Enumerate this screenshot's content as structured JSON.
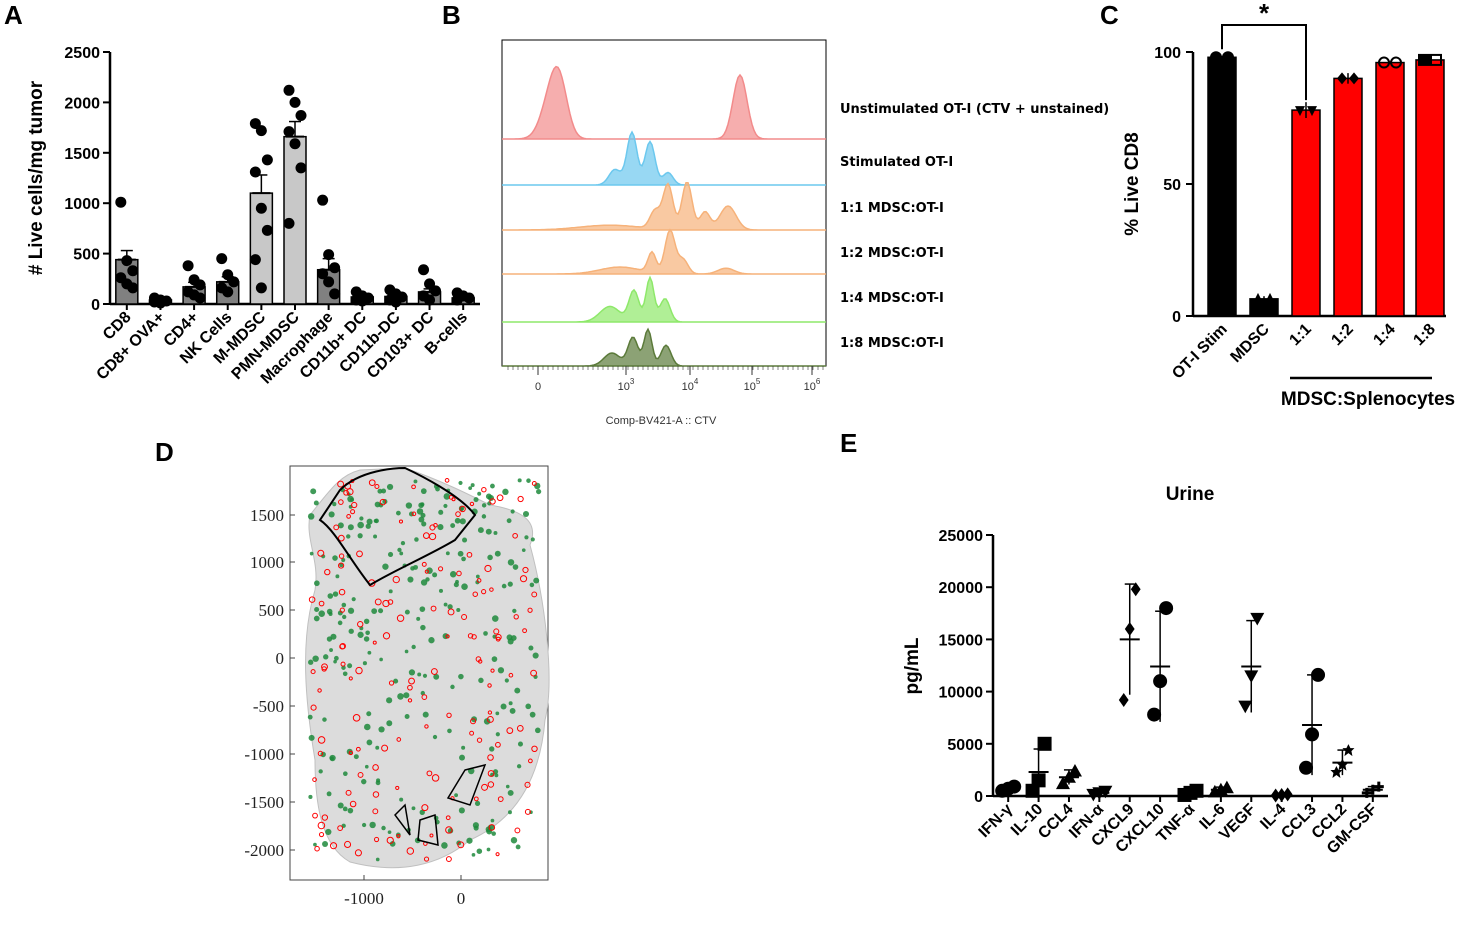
{
  "panel_labels": {
    "a": "A",
    "b": "B",
    "c": "C",
    "d": "D",
    "e": "E"
  },
  "colors": {
    "black": "#000000",
    "dark_gray": "#808080",
    "light_gray": "#c8c8c8",
    "red": "#ff0000",
    "green": "#1e8a3c",
    "hist_red": "#f28b8b",
    "hist_blue": "#6cc8ee",
    "hist_orange": "#f6b27a",
    "hist_green": "#8ee86a",
    "hist_olive": "#5b7a3a"
  },
  "chart_data": [
    {
      "id": "A",
      "type": "bar",
      "ylabel": "# Live cells/mg tumor",
      "ylim": [
        0,
        2500
      ],
      "yticks": [
        "0",
        "500",
        "1000",
        "1500",
        "2000",
        "2500"
      ],
      "categories": [
        "CD8",
        "CD8+ OVA+",
        "CD4+",
        "NK Cells",
        "M-MDSC",
        "PMN-MDSC",
        "Macrophage",
        "CD11b+ DC",
        "CD11b-DC",
        "CD103+ DC",
        "B-cells"
      ],
      "values": [
        440,
        40,
        170,
        220,
        1100,
        1660,
        340,
        70,
        75,
        120,
        60
      ],
      "sem": [
        90,
        15,
        45,
        50,
        180,
        150,
        110,
        15,
        15,
        30,
        10
      ],
      "points": [
        [
          1010,
          430,
          330,
          260,
          200,
          160
        ],
        [
          60,
          40,
          30,
          20,
          10
        ],
        [
          380,
          240,
          190,
          120,
          90,
          60
        ],
        [
          450,
          290,
          220,
          160,
          120
        ],
        [
          1790,
          1720,
          1430,
          1310,
          950,
          730,
          440,
          160
        ],
        [
          2120,
          2000,
          1870,
          1710,
          1590,
          1350,
          800
        ],
        [
          1030,
          490,
          360,
          300,
          220,
          100
        ],
        [
          120,
          80,
          60,
          40,
          30
        ],
        [
          140,
          100,
          70,
          40,
          20
        ],
        [
          340,
          200,
          130,
          80,
          40
        ],
        [
          110,
          80,
          60,
          40
        ]
      ],
      "bar_colors": [
        "dark",
        "dark",
        "dark",
        "dark",
        "light",
        "light",
        "dark",
        "dark",
        "dark",
        "dark",
        "dark"
      ]
    },
    {
      "id": "B",
      "type": "histogram",
      "xlabel": "Comp-BV421-A :: CTV",
      "xticks": [
        "0",
        "10^3",
        "10^4",
        "10^5",
        "10^6"
      ],
      "series": [
        {
          "name": "Unstimulated OT-I (CTV + unstained)",
          "color": "hist_red"
        },
        {
          "name": "Stimulated OT-I",
          "color": "hist_blue"
        },
        {
          "name": "1:1 MDSC:OT-I",
          "color": "hist_orange"
        },
        {
          "name": "1:2 MDSC:OT-I",
          "color": "hist_orange"
        },
        {
          "name": "1:4 MDSC:OT-I",
          "color": "hist_green"
        },
        {
          "name": "1:8 MDSC:OT-I",
          "color": "hist_olive"
        }
      ]
    },
    {
      "id": "C",
      "type": "bar",
      "ylabel": "% Live CD8",
      "ylim": [
        0,
        100
      ],
      "yticks": [
        "0",
        "50",
        "100"
      ],
      "categories": [
        "OT-I Stim",
        "MDSC",
        "1:1",
        "1:2",
        "1:4",
        "1:8"
      ],
      "values": [
        98,
        6.5,
        78,
        90,
        96,
        97
      ],
      "sem": [
        0.5,
        1,
        3,
        2,
        0.5,
        1
      ],
      "bar_colors": [
        "black",
        "black",
        "red",
        "red",
        "red",
        "red"
      ],
      "annotation": "*",
      "group_label": "MDSC:Splenocytes"
    },
    {
      "id": "D",
      "type": "spatial-map",
      "xticks": [
        "-1000",
        "0"
      ],
      "yticks": [
        "1500",
        "1000",
        "500",
        "0",
        "-500",
        "-1000",
        "-1500",
        "-2000"
      ]
    },
    {
      "id": "E",
      "type": "scatter",
      "title": "Urine",
      "ylabel": "pg/mL",
      "ylim": [
        0,
        25000
      ],
      "yticks": [
        "0",
        "5000",
        "10000",
        "15000",
        "20000",
        "25000"
      ],
      "categories": [
        "IFN-γ",
        "IL-10",
        "CCL4",
        "IFN-α",
        "CXCL9",
        "CXCL10",
        "TNF-α",
        "IL-6",
        "VEGF",
        "IL-4",
        "CCL3",
        "CCL2",
        "GM-CSF"
      ],
      "means": [
        700,
        2300,
        1800,
        300,
        15000,
        12400,
        300,
        600,
        12400,
        100,
        6800,
        3200,
        600
      ],
      "sd": [
        200,
        2200,
        700,
        150,
        5300,
        5300,
        200,
        250,
        4400,
        50,
        4800,
        1200,
        300
      ],
      "points": [
        [
          500,
          700,
          900
        ],
        [
          500,
          1500,
          5000
        ],
        [
          1200,
          1800,
          2400
        ],
        [
          150,
          300,
          450
        ],
        [
          9200,
          16000,
          19800
        ],
        [
          7800,
          11000,
          18000
        ],
        [
          100,
          300,
          500
        ],
        [
          400,
          600,
          800
        ],
        [
          8600,
          11500,
          17000
        ],
        [
          50,
          100,
          150
        ],
        [
          2700,
          5900,
          11600
        ],
        [
          2300,
          3000,
          4400
        ],
        [
          300,
          600,
          900
        ]
      ],
      "markers": [
        "circle",
        "square",
        "triangle",
        "tri-down",
        "diamond",
        "circle",
        "square",
        "triangle",
        "tri-down",
        "diamond",
        "circle",
        "star",
        "cross"
      ]
    }
  ]
}
